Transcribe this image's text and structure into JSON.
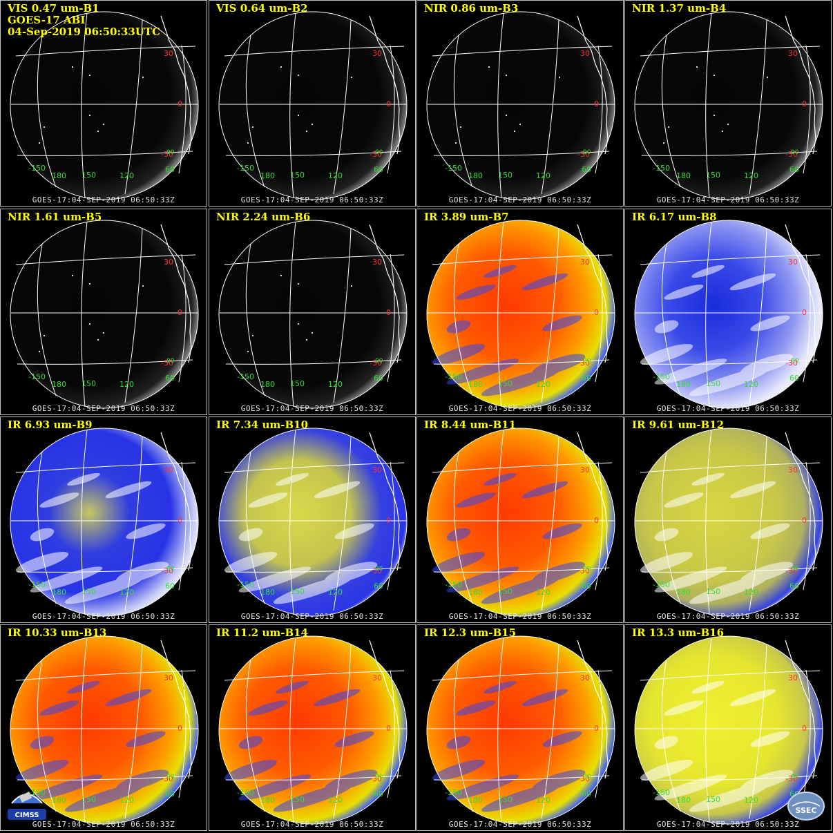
{
  "header": {
    "satellite_line": "GOES-17 ABI",
    "datetime_line": "04-Sep-2019 06:50:33UTC"
  },
  "footer_text": "GOES-17:04-SEP-2019 06:50:33Z",
  "lat_labels": [
    "30",
    "0",
    "-30",
    "-30"
  ],
  "lon_labels": [
    "-150",
    "180",
    "150",
    "120",
    "60",
    "90"
  ],
  "colors": {
    "title": "#ffff00",
    "lat_label": "#ff3030",
    "lon_label": "#33dd33",
    "grid": "#ffffff",
    "background": "#000000",
    "border": "#bdbdbd"
  },
  "panels": [
    {
      "title": "VIS 0.47 um-B1",
      "kind": "vis"
    },
    {
      "title": "VIS 0.64 um-B2",
      "kind": "vis"
    },
    {
      "title": "NIR 0.86 um-B3",
      "kind": "vis"
    },
    {
      "title": "NIR 1.37 um-B4",
      "kind": "vis"
    },
    {
      "title": "NIR 1.61 um-B5",
      "kind": "vis"
    },
    {
      "title": "NIR 2.24 um-B6",
      "kind": "vis"
    },
    {
      "title": "IR 3.89 um-B7",
      "kind": "ir-warm"
    },
    {
      "title": "IR 6.17 um-B8",
      "kind": "wv-blue"
    },
    {
      "title": "IR 6.93 um-B9",
      "kind": "wv-mix"
    },
    {
      "title": "IR 7.34 um-B10",
      "kind": "wv-yellow"
    },
    {
      "title": "IR 8.44 um-B11",
      "kind": "ir-warm"
    },
    {
      "title": "IR 9.61 um-B12",
      "kind": "ozone"
    },
    {
      "title": "IR 10.33 um-B13",
      "kind": "ir-warm"
    },
    {
      "title": "IR 11.2 um-B14",
      "kind": "ir-warm"
    },
    {
      "title": "IR 12.3 um-B15",
      "kind": "ir-warm"
    },
    {
      "title": "IR 13.3 um-B16",
      "kind": "co2"
    }
  ],
  "logos": {
    "left": "CIMSS",
    "right": "SSEC"
  }
}
